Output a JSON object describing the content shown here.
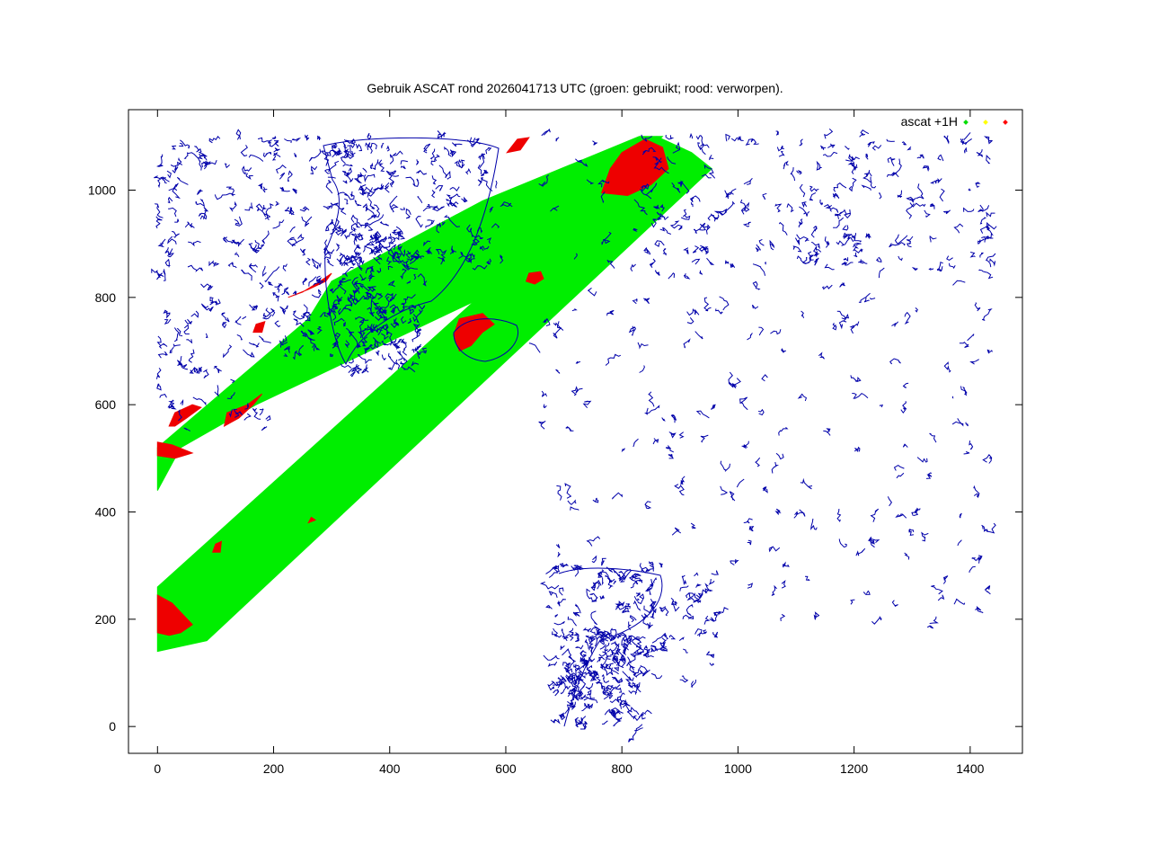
{
  "chart_data": {
    "type": "scatter",
    "title": "Gebruik ASCAT rond 2026041713 UTC (groen: gebruikt; rood: verworpen).",
    "xlabel": "",
    "ylabel": "",
    "xlim": [
      -50,
      1490
    ],
    "ylim": [
      -50,
      1150
    ],
    "x_ticks": [
      0,
      200,
      400,
      600,
      800,
      1000,
      1200,
      1400
    ],
    "y_ticks": [
      0,
      200,
      400,
      600,
      800,
      1000
    ],
    "grid": false,
    "legend_position": "top-right",
    "legend": {
      "label": "ascat +1H",
      "markers": [
        {
          "color": "#00dd00"
        },
        {
          "color": "#ffff00"
        },
        {
          "color": "#ff0000"
        }
      ]
    },
    "colors": {
      "used": "#00ee00",
      "rejected": "#ee0000",
      "coastline": "#0000aa"
    },
    "series": [
      {
        "status": "used",
        "swaths": [
          {
            "polygon": [
              [
                0,
                140
              ],
              [
                0,
                260
              ],
              [
                860,
                1100
              ],
              [
                920,
                1070
              ],
              [
                955,
                1040
              ],
              [
                85,
                160
              ]
            ]
          },
          {
            "polygon": [
              [
                0,
                440
              ],
              [
                0,
                520
              ],
              [
                260,
                760
              ],
              [
                300,
                830
              ],
              [
                560,
                980
              ],
              [
                830,
                1100
              ],
              [
                870,
                1100
              ],
              [
                710,
                920
              ],
              [
                560,
                800
              ],
              [
                170,
                600
              ],
              [
                40,
                520
              ]
            ]
          }
        ]
      },
      {
        "status": "rejected",
        "regions": [
          {
            "polygon": [
              [
                0,
                175
              ],
              [
                0,
                245
              ],
              [
                25,
                230
              ],
              [
                60,
                190
              ],
              [
                40,
                175
              ],
              [
                20,
                170
              ]
            ]
          },
          {
            "polygon": [
              [
                95,
                325
              ],
              [
                100,
                340
              ],
              [
                110,
                345
              ],
              [
                108,
                325
              ]
            ]
          },
          {
            "polygon": [
              [
                260,
                380
              ],
              [
                265,
                390
              ],
              [
                272,
                385
              ]
            ]
          },
          {
            "polygon": [
              [
                20,
                560
              ],
              [
                30,
                585
              ],
              [
                60,
                600
              ],
              [
                75,
                595
              ],
              [
                50,
                575
              ],
              [
                30,
                560
              ]
            ]
          },
          {
            "polygon": [
              [
                0,
                505
              ],
              [
                0,
                530
              ],
              [
                25,
                525
              ],
              [
                60,
                510
              ],
              [
                30,
                500
              ]
            ]
          },
          {
            "polygon": [
              [
                115,
                560
              ],
              [
                120,
                585
              ],
              [
                155,
                600
              ],
              [
                180,
                620
              ],
              [
                165,
                600
              ],
              [
                140,
                575
              ]
            ]
          },
          {
            "polygon": [
              [
                165,
                735
              ],
              [
                170,
                750
              ],
              [
                185,
                755
              ],
              [
                180,
                735
              ]
            ]
          },
          {
            "polygon": [
              [
                225,
                800
              ],
              [
                250,
                810
              ],
              [
                280,
                830
              ],
              [
                300,
                845
              ],
              [
                290,
                830
              ],
              [
                260,
                815
              ]
            ]
          },
          {
            "polygon": [
              [
                520,
                700
              ],
              [
                510,
                730
              ],
              [
                520,
                760
              ],
              [
                560,
                770
              ],
              [
                580,
                750
              ],
              [
                560,
                735
              ],
              [
                540,
                710
              ]
            ]
          },
          {
            "polygon": [
              [
                635,
                830
              ],
              [
                640,
                845
              ],
              [
                660,
                848
              ],
              [
                665,
                835
              ],
              [
                650,
                825
              ]
            ]
          },
          {
            "polygon": [
              [
                765,
                995
              ],
              [
                780,
                1040
              ],
              [
                800,
                1070
              ],
              [
                840,
                1095
              ],
              [
                870,
                1080
              ],
              [
                880,
                1040
              ],
              [
                850,
                1010
              ],
              [
                810,
                990
              ]
            ]
          },
          {
            "polygon": [
              [
                602,
                1070
              ],
              [
                620,
                1095
              ],
              [
                640,
                1098
              ],
              [
                625,
                1075
              ]
            ]
          }
        ]
      }
    ]
  }
}
